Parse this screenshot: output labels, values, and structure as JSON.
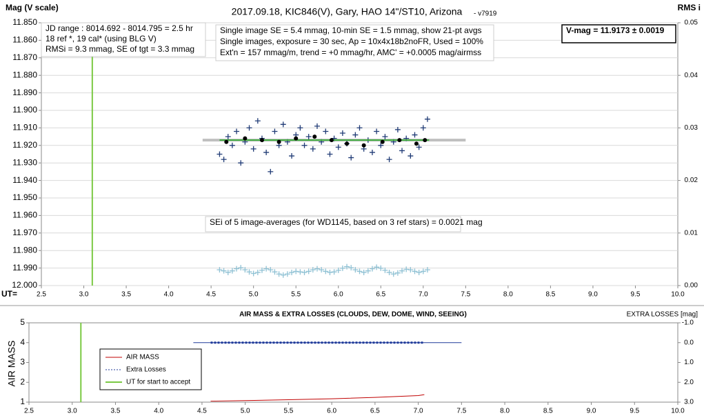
{
  "chart_data": [
    {
      "type": "scatter",
      "title": "2017.09.18,  KIC846(V),  Gary,  HAO 14\"/ST10, Arizona",
      "subtitle": "- v7919",
      "y_label": "Mag (V scale)",
      "y2_label": "RMS i",
      "x_label": "UT=",
      "xlim": [
        2.5,
        10.0
      ],
      "xticks": [
        2.5,
        {
          "value": 3,
          "label": "3.0"
        },
        3.5,
        {
          "value": 4,
          "label": "4.0"
        },
        4.5,
        {
          "value": 5,
          "label": "5.0"
        },
        5.5,
        {
          "value": 6,
          "label": "6.0"
        },
        6.5,
        {
          "value": 7,
          "label": "7.0"
        },
        7.5,
        {
          "value": 8,
          "label": "8.0"
        },
        8.5,
        {
          "value": 9,
          "label": "9.0"
        },
        9.5,
        {
          "value": 10,
          "label": "10.0"
        }
      ],
      "ylim": [
        12.0,
        11.85
      ],
      "yticks": [
        {
          "value": 11.85,
          "label": "11.850"
        },
        {
          "value": 11.86,
          "label": "11.860"
        },
        {
          "value": 11.87,
          "label": "11.870"
        },
        {
          "value": 11.88,
          "label": "11.880"
        },
        {
          "value": 11.89,
          "label": "11.890"
        },
        {
          "value": 11.9,
          "label": "11.900"
        },
        {
          "value": 11.91,
          "label": "11.910"
        },
        {
          "value": 11.92,
          "label": "11.920"
        },
        {
          "value": 11.93,
          "label": "11.930"
        },
        {
          "value": 11.94,
          "label": "11.940"
        },
        {
          "value": 11.95,
          "label": "11.950"
        },
        {
          "value": 11.96,
          "label": "11.960"
        },
        {
          "value": 11.97,
          "label": "11.970"
        },
        {
          "value": 11.98,
          "label": "11.980"
        },
        {
          "value": 11.99,
          "label": "11.990"
        },
        {
          "value": 12,
          "label": "12.000"
        }
      ],
      "y2lim": [
        0,
        0.05
      ],
      "y2ticks": [
        0.05,
        0.04,
        0.03,
        0.02,
        0.01,
        {
          "value": 0,
          "label": "0.00"
        }
      ],
      "notes": [
        [
          "JD range : 8014.692 - 8014.795 =  2.5  hr",
          "18 ref *, 19 cal* (using BLG V)",
          "RMSi = 9.3 mmag, SE of tgt = 3.3 mmag"
        ],
        [
          "Single image SE = 5.4 mmag, 10-min SE = 1.5 mmag, show 21-pt avgs",
          "Single images, exposure = 30 sec, Ap = 10x4x18b2noFR, Used = 100%",
          "Ext'n = 157 mmag/m, trend =  +0 mmag/hr, AMC' = +0.0005 mag/airmss"
        ],
        [
          "V-mag = 11.9173 ± 0.0019"
        ],
        [
          "SEi of 5 image-averages (for WD1145, based on 3 ref stars) = 0.0021 mag"
        ]
      ],
      "series": [
        {
          "style": "vline",
          "color": "#7ac943",
          "x": [
            3.1
          ]
        },
        {
          "style": "line",
          "color": "#bfbfbf",
          "width": 4,
          "x": [
            4.4,
            7.5
          ],
          "values": [
            11.917,
            11.917
          ]
        },
        {
          "style": "plus",
          "color": "#1f3a75",
          "x": [
            4.6,
            4.65,
            4.7,
            4.75,
            4.8,
            4.85,
            4.9,
            4.95,
            5.0,
            5.05,
            5.1,
            5.15,
            5.2,
            5.25,
            5.3,
            5.35,
            5.4,
            5.45,
            5.5,
            5.55,
            5.6,
            5.65,
            5.7,
            5.75,
            5.8,
            5.85,
            5.9,
            5.95,
            6.0,
            6.05,
            6.1,
            6.15,
            6.2,
            6.25,
            6.3,
            6.35,
            6.4,
            6.45,
            6.5,
            6.55,
            6.6,
            6.65,
            6.7,
            6.75,
            6.8,
            6.85,
            6.9,
            6.95,
            7.0,
            7.05
          ],
          "values": [
            11.925,
            11.928,
            11.915,
            11.92,
            11.912,
            11.93,
            11.918,
            11.91,
            11.922,
            11.906,
            11.916,
            11.924,
            11.935,
            11.912,
            11.92,
            11.908,
            11.918,
            11.926,
            11.914,
            11.91,
            11.92,
            11.915,
            11.922,
            11.909,
            11.918,
            11.912,
            11.925,
            11.916,
            11.921,
            11.913,
            11.919,
            11.927,
            11.914,
            11.91,
            11.922,
            11.917,
            11.924,
            11.912,
            11.92,
            11.915,
            11.928,
            11.918,
            11.911,
            11.923,
            11.916,
            11.926,
            11.914,
            11.921,
            11.91,
            11.905
          ]
        },
        {
          "style": "line",
          "color": "#3fae3f",
          "width": 2,
          "x": [
            4.6,
            7.07
          ],
          "values": [
            11.917,
            11.917
          ]
        },
        {
          "style": "dot",
          "color": "#000000",
          "x": [
            4.68,
            4.9,
            5.1,
            5.3,
            5.5,
            5.72,
            5.92,
            6.1,
            6.3,
            6.52,
            6.72,
            6.92,
            7.02
          ],
          "values": [
            11.918,
            11.916,
            11.917,
            11.918,
            11.916,
            11.915,
            11.917,
            11.919,
            11.92,
            11.918,
            11.917,
            11.919,
            11.917
          ]
        },
        {
          "style": "plus",
          "axis": "y2",
          "color": "#8fc1d4",
          "x": [
            4.6,
            4.65,
            4.7,
            4.75,
            4.8,
            4.85,
            4.9,
            4.95,
            5.0,
            5.05,
            5.1,
            5.15,
            5.2,
            5.25,
            5.3,
            5.35,
            5.4,
            5.45,
            5.5,
            5.55,
            5.6,
            5.65,
            5.7,
            5.75,
            5.8,
            5.85,
            5.9,
            5.95,
            6.0,
            6.05,
            6.1,
            6.15,
            6.2,
            6.25,
            6.3,
            6.35,
            6.4,
            6.45,
            6.5,
            6.55,
            6.6,
            6.65,
            6.7,
            6.75,
            6.8,
            6.85,
            6.9,
            6.95,
            7.0,
            7.05
          ],
          "values": [
            0.003,
            0.0028,
            0.0025,
            0.0028,
            0.0032,
            0.0034,
            0.003,
            0.0026,
            0.0023,
            0.0025,
            0.0029,
            0.0032,
            0.003,
            0.0026,
            0.0022,
            0.002,
            0.0022,
            0.0025,
            0.0027,
            0.0026,
            0.0025,
            0.0027,
            0.003,
            0.0032,
            0.003,
            0.0027,
            0.0025,
            0.0026,
            0.0029,
            0.0033,
            0.0036,
            0.0034,
            0.003,
            0.0027,
            0.0025,
            0.0028,
            0.0032,
            0.0035,
            0.0033,
            0.0029,
            0.0025,
            0.0022,
            0.0024,
            0.0028,
            0.0031,
            0.003,
            0.0027,
            0.0025,
            0.0027,
            0.003
          ]
        }
      ]
    },
    {
      "type": "line",
      "title": "AIR MASS & EXTRA LOSSES (CLOUDS, DEW, DOME, WIND, SEEING)",
      "y_label": "AIR MASS",
      "y2_label": "EXTRA LOSSES [mag]",
      "xlim": [
        2.5,
        10.0
      ],
      "xticks": [
        2.5,
        {
          "value": 3,
          "label": "3.0"
        },
        3.5,
        {
          "value": 4,
          "label": "4.0"
        },
        4.5,
        {
          "value": 5,
          "label": "5.0"
        },
        5.5,
        {
          "value": 6,
          "label": "6.0"
        },
        6.5,
        {
          "value": 7,
          "label": "7.0"
        },
        7.5,
        {
          "value": 8,
          "label": "8.0"
        },
        8.5,
        {
          "value": 9,
          "label": "9.0"
        },
        9.5,
        {
          "value": 10,
          "label": "10.0"
        }
      ],
      "ylim": [
        1,
        5
      ],
      "yticks": [
        1,
        2,
        3,
        4,
        5
      ],
      "y2lim": [
        3,
        -1
      ],
      "y2ticks": [
        {
          "value": -1,
          "label": "-1.0"
        },
        {
          "value": 0,
          "label": "0.0"
        },
        {
          "value": 1,
          "label": "1.0"
        },
        {
          "value": 2,
          "label": "2.0"
        },
        {
          "value": 3,
          "label": "3.0"
        }
      ],
      "series": [
        {
          "style": "vline",
          "name": "UT for start to accept",
          "color": "#7ac943",
          "x": [
            3.1
          ]
        },
        {
          "style": "line",
          "axis": "y2",
          "color": "#1f3a9a",
          "width": 1,
          "x": [
            4.4,
            7.5
          ],
          "values": [
            0,
            0
          ]
        },
        {
          "style": "line",
          "name": "AIR MASS",
          "color": "#c00000",
          "width": 1,
          "x": [
            4.6,
            5.0,
            5.5,
            6.0,
            6.5,
            7.0,
            7.07
          ],
          "values": [
            1.05,
            1.08,
            1.12,
            1.17,
            1.24,
            1.33,
            1.38
          ]
        },
        {
          "style": "dashed",
          "name": "Extra Losses",
          "axis": "y2",
          "color": "#1f3a9a",
          "width": 3,
          "x": [
            4.6,
            4.9,
            5.2,
            5.5,
            5.8,
            6.1,
            6.4,
            6.7,
            7.0,
            7.07
          ],
          "values": [
            0,
            0,
            0,
            0,
            0,
            0,
            0,
            0,
            0,
            0
          ]
        }
      ]
    }
  ]
}
